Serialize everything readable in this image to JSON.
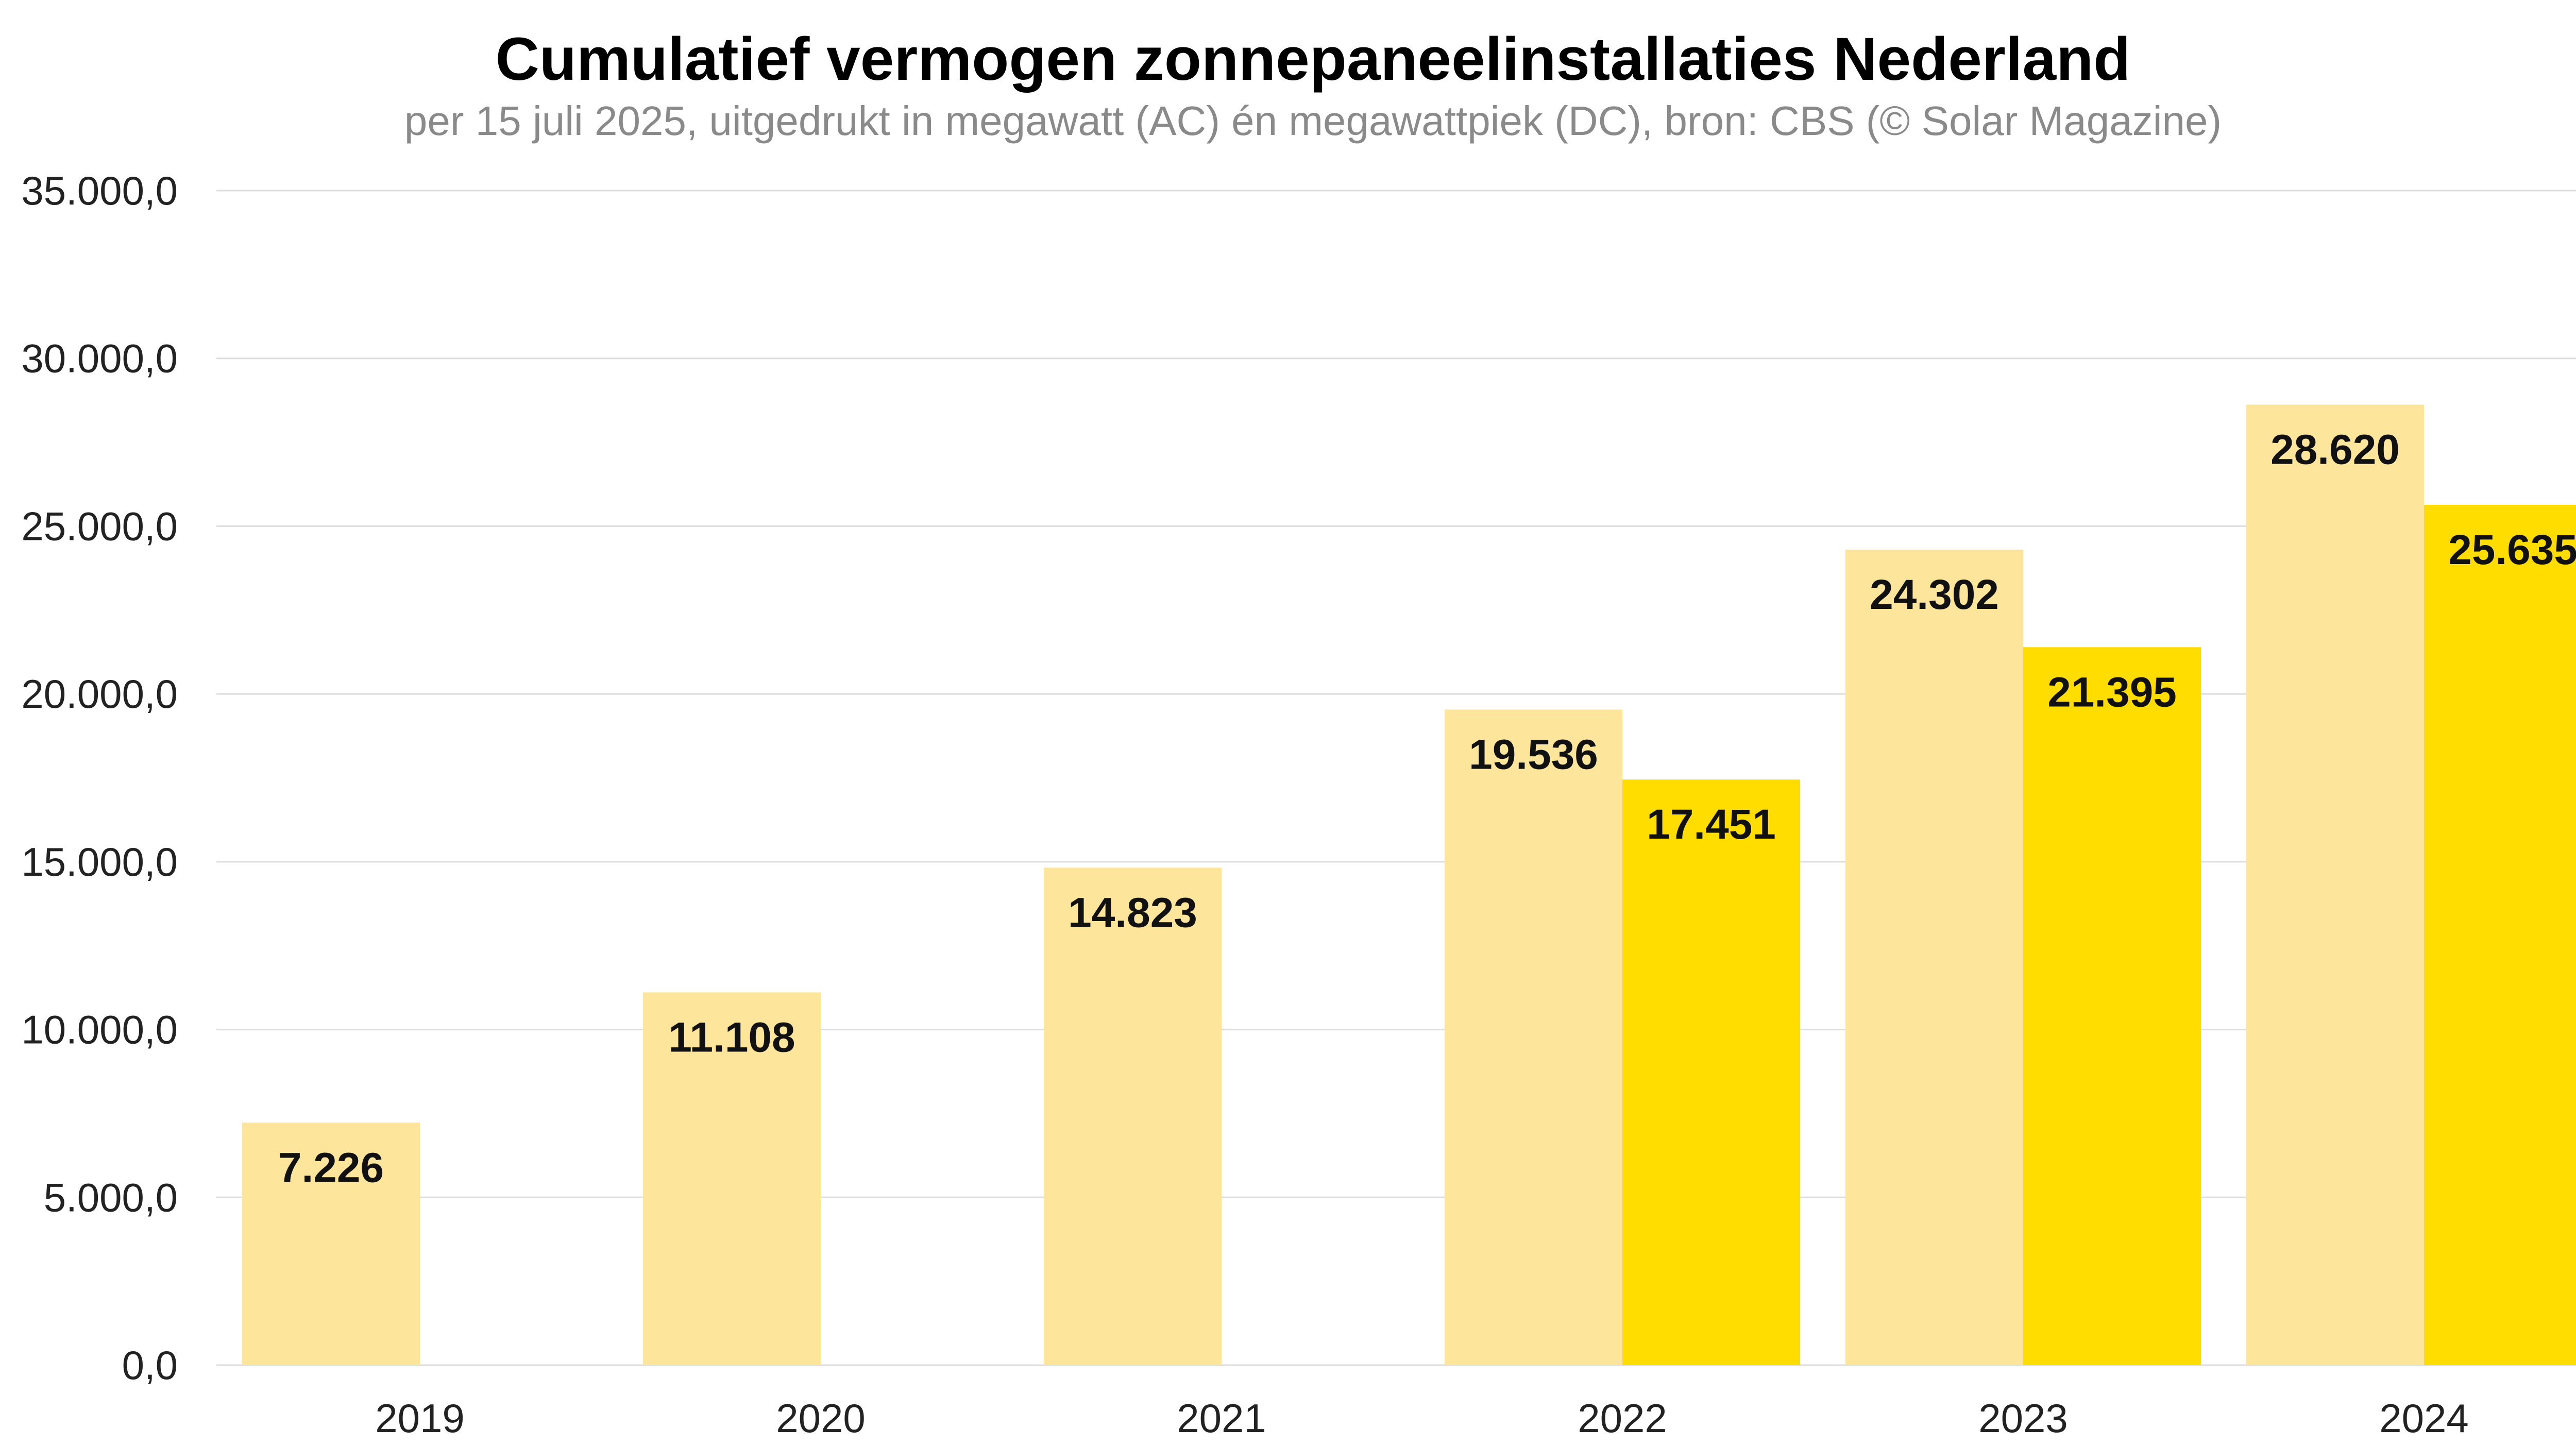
{
  "chart_data": {
    "type": "bar",
    "title": "Cumulatief vermogen zonnepaneelinstallaties Nederland",
    "subtitle": "per 15 juli 2025, uitgedrukt in megawatt (AC) én megawattpiek (DC), bron: CBS (© Solar Magazine)",
    "categories": [
      "2019",
      "2020",
      "2021",
      "2022",
      "2023",
      "2024"
    ],
    "series": [
      {
        "color": "#fde69b",
        "values": [
          7226,
          11108,
          14823,
          19536,
          24302,
          28620
        ],
        "labels": [
          "7.226",
          "11.108",
          "14.823",
          "19.536",
          "24.302",
          "28.620"
        ]
      },
      {
        "color": "#ffdd00",
        "values": [
          null,
          null,
          null,
          17451,
          21395,
          25635
        ],
        "labels": [
          null,
          null,
          null,
          "17.451",
          "21.395",
          "25.635"
        ]
      }
    ],
    "ylim": [
      0,
      35000
    ],
    "yticks": [
      0,
      5000,
      10000,
      15000,
      20000,
      25000,
      30000,
      35000
    ],
    "ytick_labels": [
      "0,0",
      "5.000,0",
      "10.000,0",
      "15.000,0",
      "20.000,0",
      "25.000,0",
      "30.000,0",
      "35.000,0"
    ],
    "xlabel": "",
    "ylabel": "",
    "grid": true,
    "legend": false,
    "gridline_color": "#dddddd"
  }
}
